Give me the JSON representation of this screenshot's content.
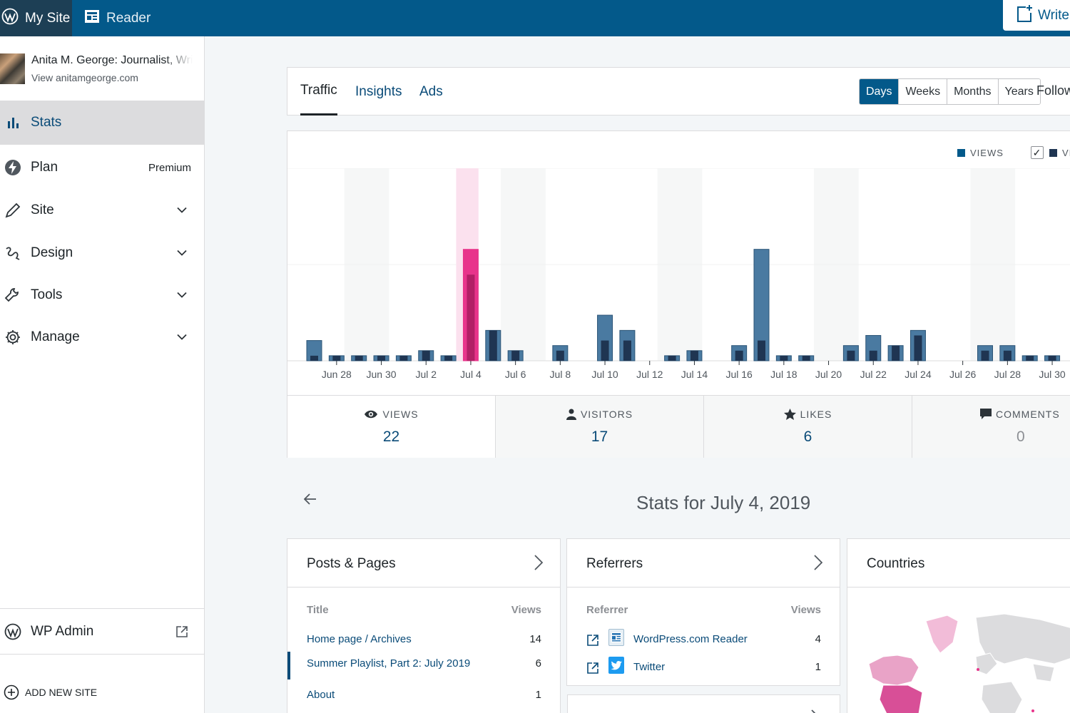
{
  "topbar": {
    "my_site": "My Site",
    "reader": "Reader",
    "write": "Write"
  },
  "sidebar": {
    "site_name": "Anita M. George: Journalist, Writer",
    "site_url": "View anitamgeorge.com",
    "items": [
      {
        "label": "Stats",
        "icon": "stats-icon",
        "right": ""
      },
      {
        "label": "Plan",
        "icon": "plan-icon",
        "right": "Premium"
      },
      {
        "label": "Site",
        "icon": "pencil-icon",
        "right": ""
      },
      {
        "label": "Design",
        "icon": "design-icon",
        "right": ""
      },
      {
        "label": "Tools",
        "icon": "wrench-icon",
        "right": ""
      },
      {
        "label": "Manage",
        "icon": "gear-icon",
        "right": ""
      }
    ],
    "wp_admin": "WP Admin",
    "add_new_site": "ADD NEW SITE"
  },
  "stats_nav": {
    "tabs": [
      "Traffic",
      "Insights",
      "Ads"
    ],
    "active_tab": "Traffic",
    "periods": [
      "Days",
      "Weeks",
      "Months",
      "Years"
    ],
    "active_period": "Days",
    "follow": "Follow"
  },
  "legend": {
    "views": "VIEWS",
    "visitors_checked": true,
    "visitors_truncated": "VI"
  },
  "chart_data": {
    "type": "bar",
    "categories": [
      "Jun 27",
      "Jun 28",
      "Jun 29",
      "Jun 30",
      "Jul 1",
      "Jul 2",
      "Jul 3",
      "Jul 4",
      "Jul 5",
      "Jul 6",
      "Jul 7",
      "Jul 8",
      "Jul 9",
      "Jul 10",
      "Jul 11",
      "Jul 12",
      "Jul 13",
      "Jul 14",
      "Jul 15",
      "Jul 16",
      "Jul 17",
      "Jul 18",
      "Jul 19",
      "Jul 20",
      "Jul 21",
      "Jul 22",
      "Jul 23",
      "Jul 24",
      "Jul 25",
      "Jul 26",
      "Jul 27",
      "Jul 28",
      "Jul 29",
      "Jul 30"
    ],
    "tick_labels": [
      "Jun 28",
      "Jun 30",
      "Jul 2",
      "Jul 4",
      "Jul 6",
      "Jul 8",
      "Jul 10",
      "Jul 12",
      "Jul 14",
      "Jul 16",
      "Jul 18",
      "Jul 20",
      "Jul 22",
      "Jul 24",
      "Jul 26",
      "Jul 28",
      "Jul 30"
    ],
    "series": [
      {
        "name": "Views",
        "color": "#4a7aa1",
        "values": [
          4,
          1,
          1,
          1,
          1,
          2,
          1,
          22,
          6,
          2,
          0,
          3,
          0,
          9,
          6,
          0,
          1,
          2,
          0,
          3,
          22,
          1,
          1,
          0,
          3,
          5,
          3,
          6,
          0,
          0,
          3,
          3,
          1,
          1
        ]
      },
      {
        "name": "Visitors",
        "color": "#1f3552",
        "values": [
          1,
          1,
          1,
          1,
          1,
          2,
          1,
          17,
          6,
          2,
          0,
          2,
          0,
          4,
          4,
          0,
          1,
          2,
          0,
          2,
          4,
          1,
          1,
          0,
          2,
          2,
          3,
          5,
          0,
          0,
          2,
          2,
          1,
          1
        ]
      }
    ],
    "highlighted": "Jul 4",
    "highlight_color": "#e8348b",
    "ylim": [
      0,
      38
    ]
  },
  "summary": [
    {
      "label": "VIEWS",
      "icon": "eye-icon",
      "value": "22"
    },
    {
      "label": "VISITORS",
      "icon": "person-icon",
      "value": "17"
    },
    {
      "label": "LIKES",
      "icon": "star-icon",
      "value": "6"
    },
    {
      "label": "COMMENTS",
      "icon": "comment-icon",
      "value": "0"
    }
  ],
  "day_title": "Stats for July 4, 2019",
  "posts_pages": {
    "title": "Posts & Pages",
    "col_title": "Title",
    "col_views": "Views",
    "rows": [
      {
        "label": "Home page / Archives",
        "value": "14"
      },
      {
        "label": "Summer Playlist, Part 2: July 2019",
        "value": "6"
      },
      {
        "label": "About",
        "value": "1"
      }
    ]
  },
  "referrers": {
    "title": "Referrers",
    "col_title": "Referrer",
    "col_views": "Views",
    "rows": [
      {
        "label": "WordPress.com Reader",
        "value": "4",
        "icon": "wordpress-reader-icon"
      },
      {
        "label": "Twitter",
        "value": "1",
        "icon": "twitter-icon"
      }
    ]
  },
  "countries": {
    "title": "Countries"
  }
}
